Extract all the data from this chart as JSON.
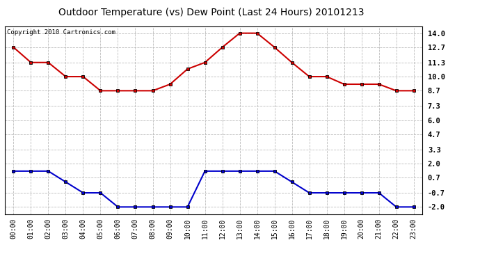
{
  "title": "Outdoor Temperature (vs) Dew Point (Last 24 Hours) 20101213",
  "copyright": "Copyright 2010 Cartronics.com",
  "hours": [
    "00:00",
    "01:00",
    "02:00",
    "03:00",
    "04:00",
    "05:00",
    "06:00",
    "07:00",
    "08:00",
    "09:00",
    "10:00",
    "11:00",
    "12:00",
    "13:00",
    "14:00",
    "15:00",
    "16:00",
    "17:00",
    "18:00",
    "19:00",
    "20:00",
    "21:00",
    "22:00",
    "23:00"
  ],
  "temp": [
    12.7,
    11.3,
    11.3,
    10.0,
    10.0,
    8.7,
    8.7,
    8.7,
    8.7,
    9.3,
    10.7,
    11.3,
    12.7,
    14.0,
    14.0,
    12.7,
    11.3,
    10.0,
    10.0,
    9.3,
    9.3,
    9.3,
    8.7,
    8.7
  ],
  "dew": [
    1.3,
    1.3,
    1.3,
    0.3,
    -0.7,
    -0.7,
    -2.0,
    -2.0,
    -2.0,
    -2.0,
    -2.0,
    1.3,
    1.3,
    1.3,
    1.3,
    1.3,
    0.3,
    -0.7,
    -0.7,
    -0.7,
    -0.7,
    -0.7,
    -2.0,
    -2.0
  ],
  "temp_color": "#cc0000",
  "dew_color": "#0000cc",
  "bg_color": "#ffffff",
  "plot_bg_color": "#ffffff",
  "grid_color": "#bbbbbb",
  "yticks": [
    14.0,
    12.7,
    11.3,
    10.0,
    8.7,
    7.3,
    6.0,
    4.7,
    3.3,
    2.0,
    0.7,
    -0.7,
    -2.0
  ],
  "ylim": [
    -2.65,
    14.65
  ],
  "marker": "s",
  "marker_color": "#000000",
  "marker_size": 3,
  "linewidth": 1.5,
  "title_fontsize": 10,
  "copyright_fontsize": 6.5,
  "tick_fontsize": 7,
  "ytick_fontsize": 7.5
}
